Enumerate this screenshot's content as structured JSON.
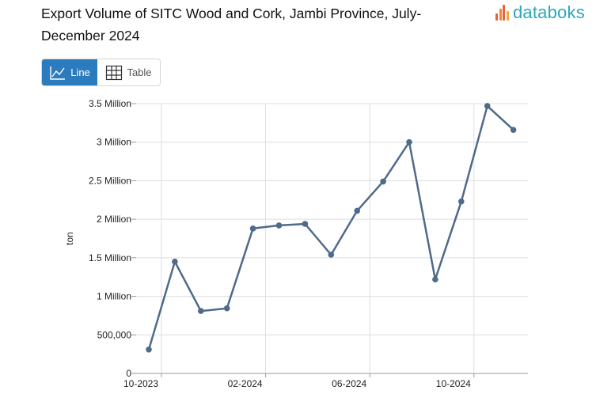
{
  "header": {
    "title": "Export Volume of SITC Wood and Cork, Jambi Province, July-December 2024",
    "brand": "databoks",
    "brand_color": "#2aa8b8"
  },
  "view_toggle": {
    "line_label": "Line",
    "table_label": "Table",
    "active": "line",
    "active_color": "#2c7bbf"
  },
  "chart_data": {
    "type": "line",
    "title": "",
    "xlabel": "",
    "ylabel": "ton",
    "ylim": [
      0,
      3500000
    ],
    "y_ticks": [
      {
        "value": 0,
        "label": "0"
      },
      {
        "value": 500000,
        "label": "500,000"
      },
      {
        "value": 1000000,
        "label": "1 Million"
      },
      {
        "value": 1500000,
        "label": "1.5 Million"
      },
      {
        "value": 2000000,
        "label": "2 Million"
      },
      {
        "value": 2500000,
        "label": "2.5 Million"
      },
      {
        "value": 3000000,
        "label": "3 Million"
      },
      {
        "value": 3500000,
        "label": "3.5 Million"
      }
    ],
    "x": [
      "2023-10",
      "2023-11",
      "2023-12",
      "2024-01",
      "2024-02",
      "2024-03",
      "2024-04",
      "2024-05",
      "2024-06",
      "2024-07",
      "2024-08",
      "2024-09",
      "2024-10",
      "2024-11",
      "2024-12"
    ],
    "x_ticks": [
      {
        "x": "2023-10",
        "label": "10-2023"
      },
      {
        "x": "2024-02",
        "label": "02-2024"
      },
      {
        "x": "2024-06",
        "label": "06-2024"
      },
      {
        "x": "2024-10",
        "label": "10-2024"
      }
    ],
    "series": [
      {
        "values": [
          310000,
          1450000,
          810000,
          845000,
          1880000,
          1920000,
          1940000,
          1540000,
          2110000,
          2490000,
          3000000,
          1220000,
          2230000,
          3470000,
          3160000
        ],
        "color": "#4f6a8a"
      }
    ],
    "grid": true,
    "legend": "none"
  }
}
